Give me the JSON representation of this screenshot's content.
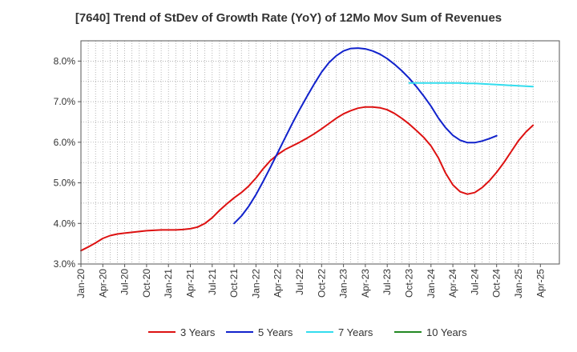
{
  "chart_data": {
    "type": "line",
    "title": "[7640]  Trend of StDev of Growth Rate (YoY) of 12Mo Mov Sum of Revenues",
    "xlabel": "",
    "ylabel": "",
    "ylim": [
      3.0,
      8.5
    ],
    "yticks": [
      3.0,
      4.0,
      5.0,
      6.0,
      7.0,
      8.0
    ],
    "ytick_labels": [
      "3.0%",
      "4.0%",
      "5.0%",
      "6.0%",
      "7.0%",
      "8.0%"
    ],
    "xticks": [
      "Jan-20",
      "Apr-20",
      "Jul-20",
      "Oct-20",
      "Jan-21",
      "Apr-21",
      "Jul-21",
      "Oct-21",
      "Jan-22",
      "Apr-22",
      "Jul-22",
      "Oct-22",
      "Jan-23",
      "Apr-23",
      "Jul-23",
      "Oct-23",
      "Jan-24",
      "Apr-24",
      "Jul-24",
      "Oct-24",
      "Jan-25",
      "Apr-25"
    ],
    "grid": true,
    "legend_position": "bottom",
    "series": [
      {
        "name": "3 Years",
        "color": "#dd1111",
        "start_month_index": 0,
        "values": [
          3.33,
          3.42,
          3.52,
          3.63,
          3.7,
          3.74,
          3.76,
          3.78,
          3.8,
          3.82,
          3.83,
          3.84,
          3.84,
          3.84,
          3.85,
          3.87,
          3.91,
          4.0,
          4.14,
          4.32,
          4.48,
          4.63,
          4.76,
          4.92,
          5.12,
          5.35,
          5.55,
          5.7,
          5.82,
          5.91,
          6.0,
          6.1,
          6.21,
          6.33,
          6.46,
          6.59,
          6.7,
          6.78,
          6.84,
          6.87,
          6.87,
          6.85,
          6.8,
          6.71,
          6.59,
          6.45,
          6.29,
          6.12,
          5.91,
          5.62,
          5.24,
          4.95,
          4.78,
          4.72,
          4.76,
          4.88,
          5.05,
          5.26,
          5.5,
          5.77,
          6.04,
          6.25,
          6.42
        ]
      },
      {
        "name": "5 Years",
        "color": "#1122cc",
        "start_month_index": 21,
        "values": [
          4.0,
          4.18,
          4.42,
          4.71,
          5.04,
          5.39,
          5.75,
          6.11,
          6.47,
          6.81,
          7.13,
          7.44,
          7.73,
          7.96,
          8.13,
          8.25,
          8.31,
          8.32,
          8.3,
          8.25,
          8.17,
          8.06,
          7.92,
          7.76,
          7.58,
          7.37,
          7.14,
          6.89,
          6.6,
          6.36,
          6.17,
          6.05,
          5.99,
          5.99,
          6.03,
          6.09,
          6.16
        ]
      },
      {
        "name": "7 Years",
        "color": "#33ddee",
        "start_month_index": 45,
        "values": [
          7.46,
          7.46,
          7.46,
          7.46,
          7.46,
          7.46,
          7.46,
          7.46,
          7.45,
          7.45,
          7.44,
          7.43,
          7.42,
          7.41,
          7.4,
          7.39,
          7.38,
          7.37
        ]
      },
      {
        "name": "10 Years",
        "color": "#228822",
        "start_month_index": 0,
        "values": []
      }
    ]
  }
}
